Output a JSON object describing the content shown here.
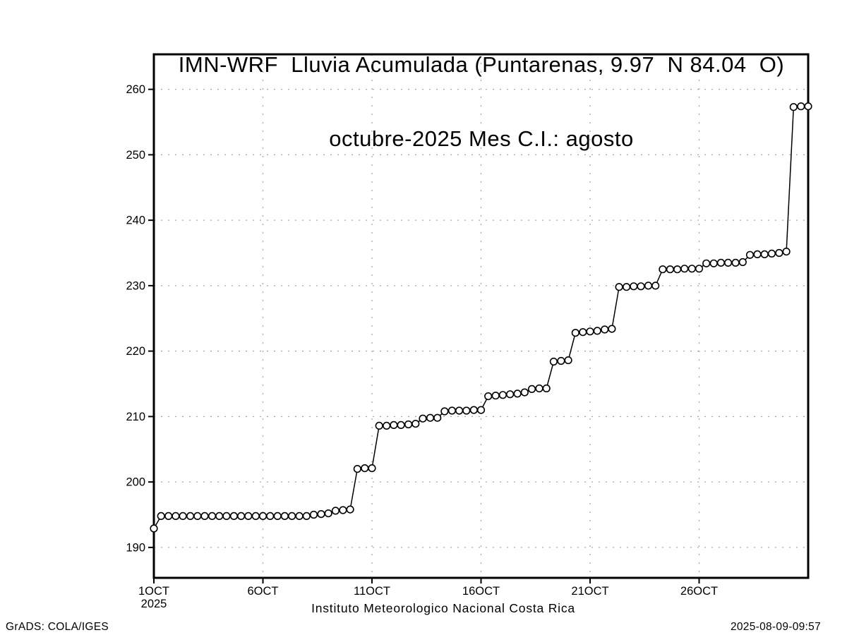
{
  "header": {
    "title_line1": "IMN-WRF  Lluvia Acumulada (Puntarenas, 9.97  N 84.04  O)",
    "title_line2": "octubre-2025 Mes C.I.: agosto"
  },
  "footer": {
    "xaxis_note": "Instituto Meteorologico Nacional Costa Rica",
    "credit": "GrADS: COLA/IGES",
    "timestamp": "2025-08-09-09:57"
  },
  "chart_data": {
    "type": "line",
    "title": "IMN-WRF  Lluvia Acumulada (Puntarenas, 9.97  N 84.04  O)",
    "subtitle": "octubre-2025 Mes C.I.: agosto",
    "xlabel": "Instituto Meteorologico Nacional Costa Rica",
    "ylabel": "",
    "marker": "open-circle",
    "line_color": "#000000",
    "grid_color": "#a8a8a8",
    "grid": "dotted",
    "legend": "none",
    "xlim_days": [
      1,
      31
    ],
    "ylim": [
      185.35,
      265.35
    ],
    "yticks": [
      190,
      200,
      210,
      220,
      230,
      240,
      250,
      260
    ],
    "xticks": [
      {
        "day": 1,
        "label": "1OCT",
        "sublabel": "2025"
      },
      {
        "day": 6,
        "label": "6OCT"
      },
      {
        "day": 11,
        "label": "11OCT"
      },
      {
        "day": 16,
        "label": "16OCT"
      },
      {
        "day": 21,
        "label": "21OCT"
      },
      {
        "day": 26,
        "label": "26OCT"
      }
    ],
    "series": [
      {
        "name": "lluvia_acumulada_mm",
        "points": [
          [
            1,
            192.9
          ],
          [
            1.33,
            194.8
          ],
          [
            1.67,
            194.8
          ],
          [
            2,
            194.8
          ],
          [
            2.33,
            194.8
          ],
          [
            2.67,
            194.8
          ],
          [
            3,
            194.8
          ],
          [
            3.33,
            194.8
          ],
          [
            3.67,
            194.8
          ],
          [
            4,
            194.8
          ],
          [
            4.33,
            194.8
          ],
          [
            4.67,
            194.8
          ],
          [
            5,
            194.8
          ],
          [
            5.33,
            194.8
          ],
          [
            5.67,
            194.8
          ],
          [
            6,
            194.8
          ],
          [
            6.33,
            194.8
          ],
          [
            6.67,
            194.8
          ],
          [
            7,
            194.8
          ],
          [
            7.33,
            194.8
          ],
          [
            7.67,
            194.8
          ],
          [
            8,
            194.8
          ],
          [
            8.33,
            195.0
          ],
          [
            8.67,
            195.1
          ],
          [
            9,
            195.2
          ],
          [
            9.33,
            195.6
          ],
          [
            9.67,
            195.7
          ],
          [
            10,
            195.8
          ],
          [
            10.33,
            202.0
          ],
          [
            10.67,
            202.1
          ],
          [
            11,
            202.1
          ],
          [
            11.33,
            208.6
          ],
          [
            11.67,
            208.6
          ],
          [
            12,
            208.7
          ],
          [
            12.33,
            208.7
          ],
          [
            12.67,
            208.8
          ],
          [
            13,
            208.9
          ],
          [
            13.33,
            209.7
          ],
          [
            13.67,
            209.8
          ],
          [
            14,
            209.8
          ],
          [
            14.33,
            210.8
          ],
          [
            14.67,
            210.9
          ],
          [
            15,
            210.9
          ],
          [
            15.33,
            210.9
          ],
          [
            15.67,
            211.0
          ],
          [
            16,
            211.0
          ],
          [
            16.33,
            213.1
          ],
          [
            16.67,
            213.2
          ],
          [
            17,
            213.3
          ],
          [
            17.33,
            213.4
          ],
          [
            17.67,
            213.5
          ],
          [
            18,
            213.7
          ],
          [
            18.33,
            214.2
          ],
          [
            18.67,
            214.3
          ],
          [
            19,
            214.3
          ],
          [
            19.33,
            218.4
          ],
          [
            19.67,
            218.5
          ],
          [
            20,
            218.6
          ],
          [
            20.33,
            222.8
          ],
          [
            20.67,
            222.9
          ],
          [
            21,
            223.0
          ],
          [
            21.33,
            223.1
          ],
          [
            21.67,
            223.3
          ],
          [
            22,
            223.4
          ],
          [
            22.33,
            229.8
          ],
          [
            22.67,
            229.8
          ],
          [
            23,
            229.9
          ],
          [
            23.33,
            229.9
          ],
          [
            23.67,
            230.0
          ],
          [
            24,
            230.0
          ],
          [
            24.33,
            232.5
          ],
          [
            24.67,
            232.5
          ],
          [
            25,
            232.5
          ],
          [
            25.33,
            232.6
          ],
          [
            25.67,
            232.6
          ],
          [
            26,
            232.6
          ],
          [
            26.33,
            233.4
          ],
          [
            26.67,
            233.4
          ],
          [
            27,
            233.5
          ],
          [
            27.33,
            233.5
          ],
          [
            27.67,
            233.5
          ],
          [
            28,
            233.6
          ],
          [
            28.33,
            234.7
          ],
          [
            28.67,
            234.8
          ],
          [
            29,
            234.8
          ],
          [
            29.33,
            234.9
          ],
          [
            29.67,
            235.0
          ],
          [
            30,
            235.2
          ],
          [
            30.33,
            257.3
          ],
          [
            30.67,
            257.4
          ],
          [
            31,
            257.4
          ]
        ]
      }
    ]
  }
}
